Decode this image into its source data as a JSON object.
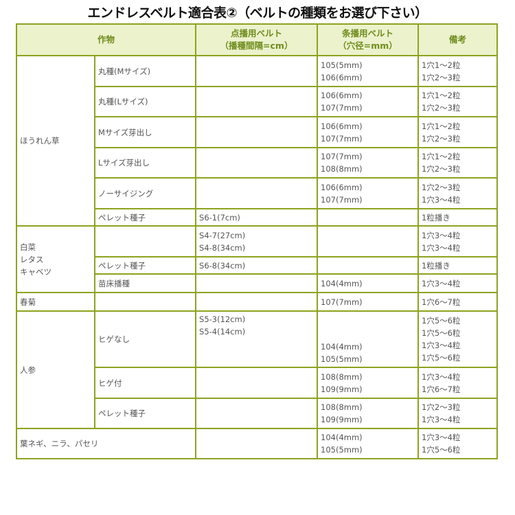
{
  "title": "エンドレスベルト適合表②（ベルトの種類をお選び下さい）",
  "headers": {
    "crop": "作物",
    "point_belt": "点播用ベルト\n（播種間隔=cm）",
    "row_belt": "条播用ベルト\n（穴径=mm）",
    "notes": "備考"
  },
  "groups": {
    "spinach": {
      "name": "ほうれん草",
      "rows": [
        {
          "sub": "丸種(Mサイズ)",
          "point": "",
          "row": "105(5mm)\n106(6mm)",
          "notes": "1穴1～2粒\n1穴2～3粒"
        },
        {
          "sub": "丸種(Lサイズ)",
          "point": "",
          "row": "106(6mm)\n107(7mm)",
          "notes": "1穴1～2粒\n1穴2～3粒"
        },
        {
          "sub": "Mサイズ芽出し",
          "point": "",
          "row": "106(6mm)\n107(7mm)",
          "notes": "1穴1～2粒\n1穴2～3粒"
        },
        {
          "sub": "Lサイズ芽出し",
          "point": "",
          "row": "107(7mm)\n108(8mm)",
          "notes": "1穴1～2粒\n1穴2～3粒"
        },
        {
          "sub": "ノーサイジング",
          "point": "",
          "row": "106(6mm)\n107(7mm)",
          "notes": "1穴2～3粒\n1穴3～4粒"
        },
        {
          "sub": "ペレット種子",
          "point": "S6-1(7cm)",
          "row": "",
          "notes": "1粒播き"
        }
      ]
    },
    "cabbage": {
      "name": "白菜\nレタス\nキャベツ",
      "rows": [
        {
          "sub": "",
          "point": "S4-7(27cm)\nS4-8(34cm)",
          "row": "",
          "notes": "1穴3～4粒\n1穴3～4粒"
        },
        {
          "sub": "ペレット種子",
          "point": "S6-8(34cm)",
          "row": "",
          "notes": "1粒播き"
        },
        {
          "sub": "苗床播種",
          "point": "",
          "row": "104(4mm)",
          "notes": "1穴3～4粒"
        }
      ]
    },
    "shungiku": {
      "name": "春菊",
      "sub": "",
      "point": "",
      "row": "107(7mm)",
      "notes": "1穴6～7粒"
    },
    "carrot": {
      "name": "人参",
      "rows": [
        {
          "sub": "ヒゲなし",
          "point": "S5-3(12cm)\nS5-4(14cm)",
          "row": "104(4mm)\n105(5mm)",
          "notes": "1穴5～6粒\n1穴5～6粒\n1穴3～4粒\n1穴5～6粒"
        },
        {
          "sub": "ヒゲ付",
          "point": "",
          "row": "108(8mm)\n109(9mm)",
          "notes": "1穴3～4粒\n1穴6～7粒"
        },
        {
          "sub": "ペレット種子",
          "point": "",
          "row": "108(8mm)\n109(9mm)",
          "notes": "1穴2～3粒\n1穴3～4粒"
        }
      ]
    },
    "negi": {
      "name": "葉ネギ、ニラ、パセリ",
      "point": "",
      "row": "104(4mm)\n105(5mm)",
      "notes": "1穴3～4粒\n1穴5～6粒"
    }
  },
  "colors": {
    "border": "#8ea21e",
    "header_bg": "#ebf2cc",
    "header_text": "#6f8c1c"
  }
}
